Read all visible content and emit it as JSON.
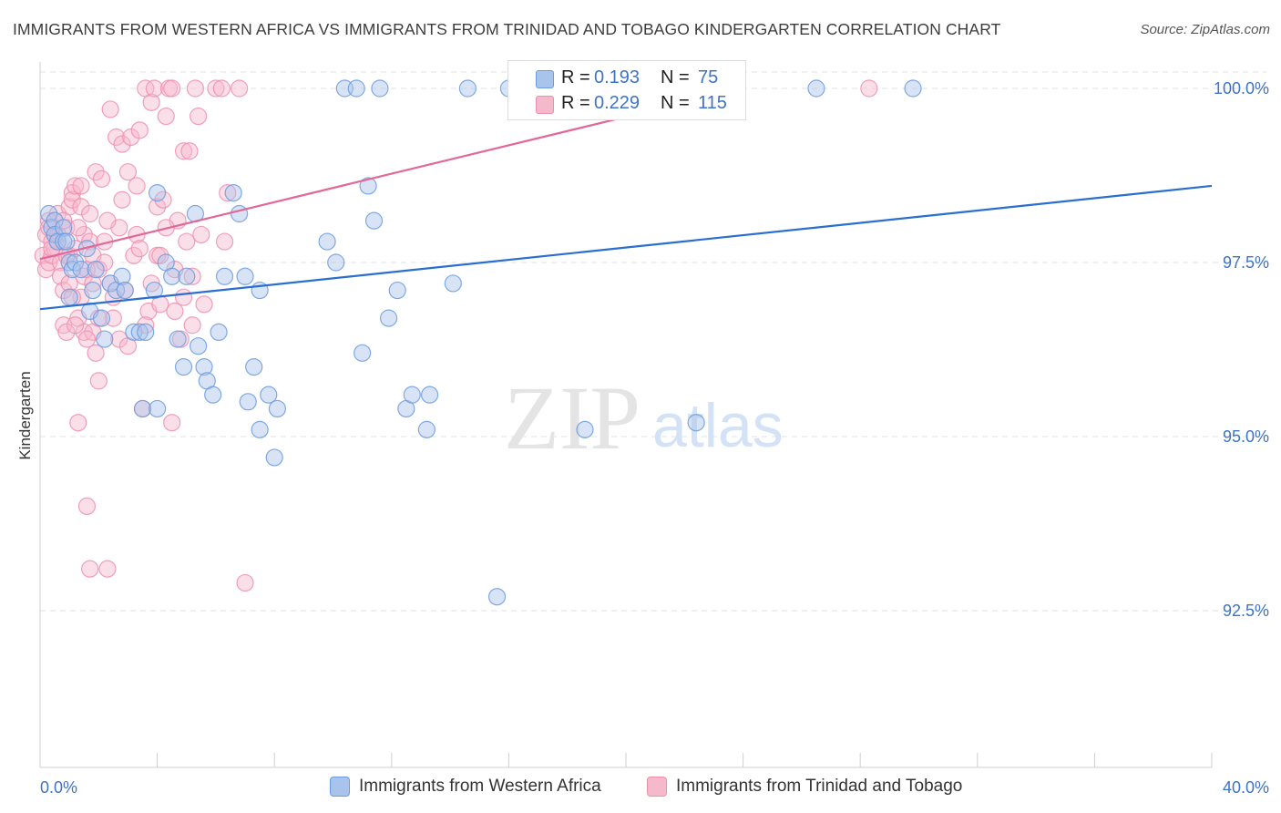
{
  "header": {
    "title": "IMMIGRANTS FROM WESTERN AFRICA VS IMMIGRANTS FROM TRINIDAD AND TOBAGO KINDERGARTEN CORRELATION CHART",
    "source": "Source: ZipAtlas.com"
  },
  "watermark": {
    "zip": "ZIP",
    "atlas": "atlas"
  },
  "legend": {
    "series1": {
      "r_label": "R =",
      "r_value": "0.193",
      "n_label": "N =",
      "n_value": "75"
    },
    "series2": {
      "r_label": "R =",
      "r_value": "0.229",
      "n_label": "N =",
      "n_value": "115"
    }
  },
  "colors": {
    "blue_fill": "#a8c4ec",
    "blue_stroke": "#6b9be0",
    "blue_line": "#2a6fcf",
    "pink_fill": "#f6b8cb",
    "pink_stroke": "#ee8fae",
    "pink_line": "#e0699a",
    "tick_label": "#3f73c6",
    "grid": "#dde3ea"
  },
  "chart_data": {
    "type": "scatter",
    "title": "IMMIGRANTS FROM WESTERN AFRICA VS IMMIGRANTS FROM TRINIDAD AND TOBAGO KINDERGARTEN CORRELATION CHART",
    "xlabel": "",
    "ylabel": "Kindergarten",
    "xlim": [
      0,
      40
    ],
    "ylim": [
      90.2,
      100.6
    ],
    "x_tick_labels": [
      "0.0%",
      "40.0%"
    ],
    "y_ticks": [
      92.5,
      95.0,
      97.5,
      100.0
    ],
    "y_tick_labels": [
      "92.5%",
      "95.0%",
      "97.5%",
      "100.0%"
    ],
    "grid": true,
    "legend_position": "top-center",
    "series": [
      {
        "name": "Immigrants from Western Africa",
        "color": "#a8c4ec",
        "trend": [
          [
            0,
            96.83
          ],
          [
            40,
            98.6
          ]
        ],
        "points": [
          [
            0.3,
            98.2
          ],
          [
            0.4,
            98.0
          ],
          [
            0.5,
            98.1
          ],
          [
            0.5,
            97.9
          ],
          [
            0.6,
            97.8
          ],
          [
            0.8,
            98.0
          ],
          [
            0.8,
            97.8
          ],
          [
            0.9,
            97.8
          ],
          [
            1.0,
            97.5
          ],
          [
            1.1,
            97.4
          ],
          [
            1.2,
            97.5
          ],
          [
            1.0,
            97.0
          ],
          [
            1.4,
            97.4
          ],
          [
            1.6,
            97.7
          ],
          [
            1.7,
            96.8
          ],
          [
            1.8,
            97.1
          ],
          [
            1.9,
            97.4
          ],
          [
            2.1,
            96.7
          ],
          [
            2.2,
            96.4
          ],
          [
            2.4,
            97.2
          ],
          [
            2.6,
            97.1
          ],
          [
            2.8,
            97.3
          ],
          [
            2.9,
            97.1
          ],
          [
            3.2,
            96.5
          ],
          [
            3.4,
            96.5
          ],
          [
            3.6,
            96.5
          ],
          [
            3.9,
            97.1
          ],
          [
            4.0,
            98.5
          ],
          [
            4.3,
            97.5
          ],
          [
            4.5,
            97.3
          ],
          [
            4.7,
            96.4
          ],
          [
            4.9,
            96.0
          ],
          [
            5.0,
            97.3
          ],
          [
            5.3,
            98.2
          ],
          [
            5.4,
            96.3
          ],
          [
            5.6,
            96.0
          ],
          [
            5.7,
            95.8
          ],
          [
            5.9,
            95.6
          ],
          [
            6.1,
            96.5
          ],
          [
            6.3,
            97.3
          ],
          [
            6.6,
            98.5
          ],
          [
            6.8,
            98.2
          ],
          [
            7.0,
            97.3
          ],
          [
            7.1,
            95.5
          ],
          [
            7.3,
            96.0
          ],
          [
            7.5,
            97.1
          ],
          [
            7.8,
            95.6
          ],
          [
            8.0,
            94.7
          ],
          [
            8.1,
            95.4
          ],
          [
            9.8,
            97.8
          ],
          [
            10.1,
            97.5
          ],
          [
            10.4,
            100.0
          ],
          [
            10.8,
            100.0
          ],
          [
            11.0,
            96.2
          ],
          [
            11.2,
            98.6
          ],
          [
            11.4,
            98.1
          ],
          [
            11.6,
            100.0
          ],
          [
            11.9,
            96.7
          ],
          [
            12.2,
            97.1
          ],
          [
            12.5,
            95.4
          ],
          [
            12.7,
            95.6
          ],
          [
            13.2,
            95.1
          ],
          [
            13.3,
            95.6
          ],
          [
            14.1,
            97.2
          ],
          [
            14.6,
            100.0
          ],
          [
            15.6,
            92.7
          ],
          [
            16.0,
            100.0
          ],
          [
            16.6,
            100.0
          ],
          [
            18.6,
            95.1
          ],
          [
            22.4,
            95.2
          ],
          [
            26.5,
            100.0
          ],
          [
            29.8,
            100.0
          ],
          [
            3.5,
            95.4
          ],
          [
            4.0,
            95.4
          ],
          [
            7.5,
            95.1
          ]
        ]
      },
      {
        "name": "Immigrants from Trinidad and Tobago",
        "color": "#f6b8cb",
        "trend": [
          [
            0,
            97.55
          ],
          [
            24,
            100.0
          ]
        ],
        "points": [
          [
            0.1,
            97.6
          ],
          [
            0.2,
            97.4
          ],
          [
            0.2,
            97.9
          ],
          [
            0.3,
            98.1
          ],
          [
            0.3,
            97.5
          ],
          [
            0.4,
            97.8
          ],
          [
            0.4,
            97.6
          ],
          [
            0.5,
            97.9
          ],
          [
            0.5,
            97.7
          ],
          [
            0.6,
            98.2
          ],
          [
            0.6,
            97.8
          ],
          [
            0.7,
            97.5
          ],
          [
            0.7,
            97.3
          ],
          [
            0.8,
            97.1
          ],
          [
            0.8,
            96.6
          ],
          [
            0.9,
            96.5
          ],
          [
            0.9,
            98.0
          ],
          [
            1.0,
            98.3
          ],
          [
            1.0,
            97.6
          ],
          [
            1.1,
            98.5
          ],
          [
            1.1,
            98.4
          ],
          [
            1.2,
            98.6
          ],
          [
            1.2,
            97.7
          ],
          [
            1.3,
            96.7
          ],
          [
            1.3,
            95.2
          ],
          [
            1.4,
            98.6
          ],
          [
            1.4,
            98.3
          ],
          [
            1.5,
            97.9
          ],
          [
            1.5,
            97.3
          ],
          [
            1.5,
            96.5
          ],
          [
            1.6,
            94.0
          ],
          [
            1.6,
            97.4
          ],
          [
            1.7,
            93.1
          ],
          [
            1.7,
            97.8
          ],
          [
            1.8,
            97.6
          ],
          [
            1.8,
            96.5
          ],
          [
            1.9,
            98.8
          ],
          [
            1.9,
            96.2
          ],
          [
            2.0,
            95.8
          ],
          [
            2.0,
            97.4
          ],
          [
            2.1,
            98.7
          ],
          [
            2.2,
            97.5
          ],
          [
            2.3,
            93.1
          ],
          [
            2.4,
            97.2
          ],
          [
            2.4,
            99.7
          ],
          [
            2.5,
            96.7
          ],
          [
            2.6,
            99.3
          ],
          [
            2.7,
            96.4
          ],
          [
            2.8,
            98.4
          ],
          [
            2.8,
            99.2
          ],
          [
            2.9,
            97.1
          ],
          [
            3.0,
            98.8
          ],
          [
            3.1,
            99.3
          ],
          [
            3.2,
            97.6
          ],
          [
            3.3,
            97.9
          ],
          [
            3.4,
            99.4
          ],
          [
            3.4,
            97.7
          ],
          [
            3.5,
            95.4
          ],
          [
            3.6,
            100.0
          ],
          [
            3.7,
            96.8
          ],
          [
            3.8,
            99.8
          ],
          [
            3.9,
            100.0
          ],
          [
            4.0,
            98.3
          ],
          [
            4.0,
            97.6
          ],
          [
            4.1,
            96.9
          ],
          [
            4.2,
            98.4
          ],
          [
            4.3,
            99.6
          ],
          [
            4.4,
            100.0
          ],
          [
            4.5,
            95.2
          ],
          [
            4.5,
            100.0
          ],
          [
            4.6,
            97.4
          ],
          [
            4.7,
            98.1
          ],
          [
            4.8,
            96.4
          ],
          [
            4.9,
            99.1
          ],
          [
            5.0,
            97.8
          ],
          [
            5.1,
            99.1
          ],
          [
            5.2,
            97.3
          ],
          [
            5.3,
            100.0
          ],
          [
            5.4,
            99.6
          ],
          [
            5.5,
            97.9
          ],
          [
            6.0,
            100.0
          ],
          [
            6.2,
            100.0
          ],
          [
            6.4,
            98.5
          ],
          [
            6.8,
            100.0
          ],
          [
            7.0,
            92.9
          ],
          [
            28.3,
            100.0
          ],
          [
            0.3,
            98.0
          ],
          [
            0.4,
            97.7
          ],
          [
            0.6,
            97.9
          ],
          [
            0.9,
            97.6
          ],
          [
            1.0,
            97.2
          ],
          [
            1.2,
            96.6
          ],
          [
            1.4,
            97.0
          ],
          [
            1.6,
            96.4
          ],
          [
            1.8,
            97.2
          ],
          [
            2.0,
            96.7
          ],
          [
            2.2,
            97.8
          ],
          [
            2.5,
            97.0
          ],
          [
            2.7,
            98.0
          ],
          [
            3.0,
            96.3
          ],
          [
            3.3,
            98.6
          ],
          [
            3.6,
            96.6
          ],
          [
            3.8,
            97.2
          ],
          [
            4.1,
            97.6
          ],
          [
            4.3,
            98.0
          ],
          [
            4.6,
            96.8
          ],
          [
            4.9,
            97.0
          ],
          [
            5.2,
            96.6
          ],
          [
            5.6,
            96.9
          ],
          [
            6.3,
            97.8
          ],
          [
            0.8,
            98.1
          ],
          [
            1.1,
            97.0
          ],
          [
            1.3,
            98.0
          ],
          [
            1.7,
            98.2
          ],
          [
            2.3,
            98.1
          ]
        ]
      }
    ]
  },
  "bottom_legend": {
    "item1": "Immigrants from Western Africa",
    "item2": "Immigrants from Trinidad and Tobago"
  }
}
